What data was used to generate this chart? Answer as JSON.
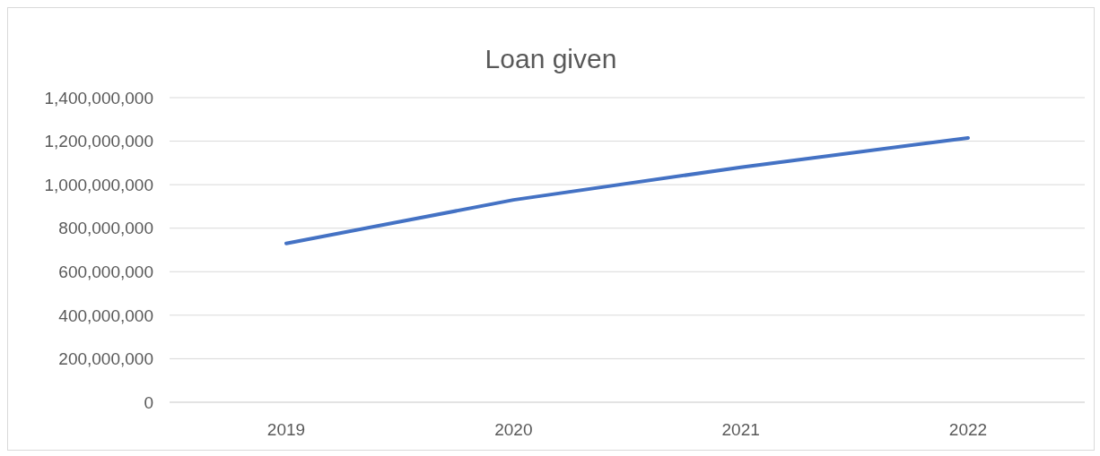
{
  "chart_data": {
    "type": "line",
    "title": "Loan given",
    "categories": [
      "2019",
      "2020",
      "2021",
      "2022"
    ],
    "series": [
      {
        "color": "#4472c4",
        "values": [
          730000000,
          930000000,
          1080000000,
          1215000000
        ]
      }
    ],
    "ylim": [
      0,
      1400000000
    ],
    "yticks": [
      0,
      {
        "value": 200000000,
        "label": "200,000,000"
      },
      {
        "value": 400000000,
        "label": "400,000,000"
      },
      {
        "value": 600000000,
        "label": "600,000,000"
      },
      {
        "value": 800000000,
        "label": "800,000,000"
      },
      {
        "value": 1000000000,
        "label": "1,000,000,000"
      },
      {
        "value": 1200000000,
        "label": "1,200,000,000"
      },
      {
        "value": 1400000000,
        "label": "1,400,000,000"
      }
    ],
    "grid": "y",
    "marker": "none",
    "line_style": "solid"
  }
}
